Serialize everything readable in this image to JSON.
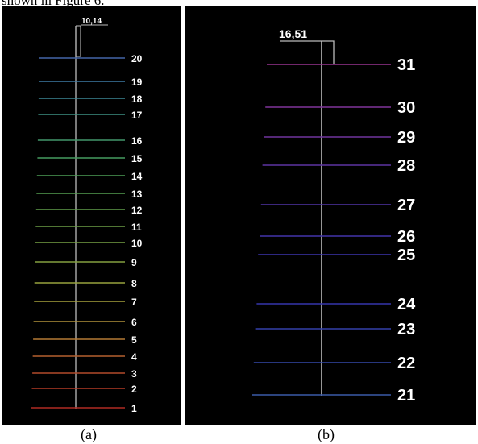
{
  "top_caption": "shown in Figure 6.",
  "colors": {
    "background": "#000000",
    "stem": "#bbbbbb"
  },
  "panels": [
    {
      "id": "a",
      "caption": "(a)",
      "dimension_label": "10,14",
      "levels": [
        {
          "label": "1",
          "color": "#b02a22"
        },
        {
          "label": "2",
          "color": "#b23a26"
        },
        {
          "label": "3",
          "color": "#b34a2a"
        },
        {
          "label": "4",
          "color": "#b5602f"
        },
        {
          "label": "5",
          "color": "#b67a36"
        },
        {
          "label": "6",
          "color": "#b0913a"
        },
        {
          "label": "7",
          "color": "#a6a03c"
        },
        {
          "label": "8",
          "color": "#98a23e"
        },
        {
          "label": "9",
          "color": "#84a040"
        },
        {
          "label": "10",
          "color": "#76a044"
        },
        {
          "label": "11",
          "color": "#6c9e46"
        },
        {
          "label": "12",
          "color": "#609e4a"
        },
        {
          "label": "13",
          "color": "#549e50"
        },
        {
          "label": "14",
          "color": "#4c9e56"
        },
        {
          "label": "15",
          "color": "#469c60"
        },
        {
          "label": "16",
          "color": "#42986c"
        },
        {
          "label": "17",
          "color": "#3e9082"
        },
        {
          "label": "18",
          "color": "#3c8896"
        },
        {
          "label": "19",
          "color": "#3e7aa4"
        },
        {
          "label": "20",
          "color": "#4466a8"
        }
      ]
    },
    {
      "id": "b",
      "caption": "(b)",
      "dimension_label": "16,51",
      "levels": [
        {
          "label": "21",
          "color": "#3a5aa8"
        },
        {
          "label": "22",
          "color": "#3448a8"
        },
        {
          "label": "23",
          "color": "#3440aa"
        },
        {
          "label": "24",
          "color": "#3636ac"
        },
        {
          "label": "25",
          "color": "#3c34ac"
        },
        {
          "label": "26",
          "color": "#4234aa"
        },
        {
          "label": "27",
          "color": "#5034a6"
        },
        {
          "label": "28",
          "color": "#5e34a2"
        },
        {
          "label": "29",
          "color": "#70349e"
        },
        {
          "label": "30",
          "color": "#80349a"
        },
        {
          "label": "31",
          "color": "#983490"
        }
      ]
    }
  ]
}
